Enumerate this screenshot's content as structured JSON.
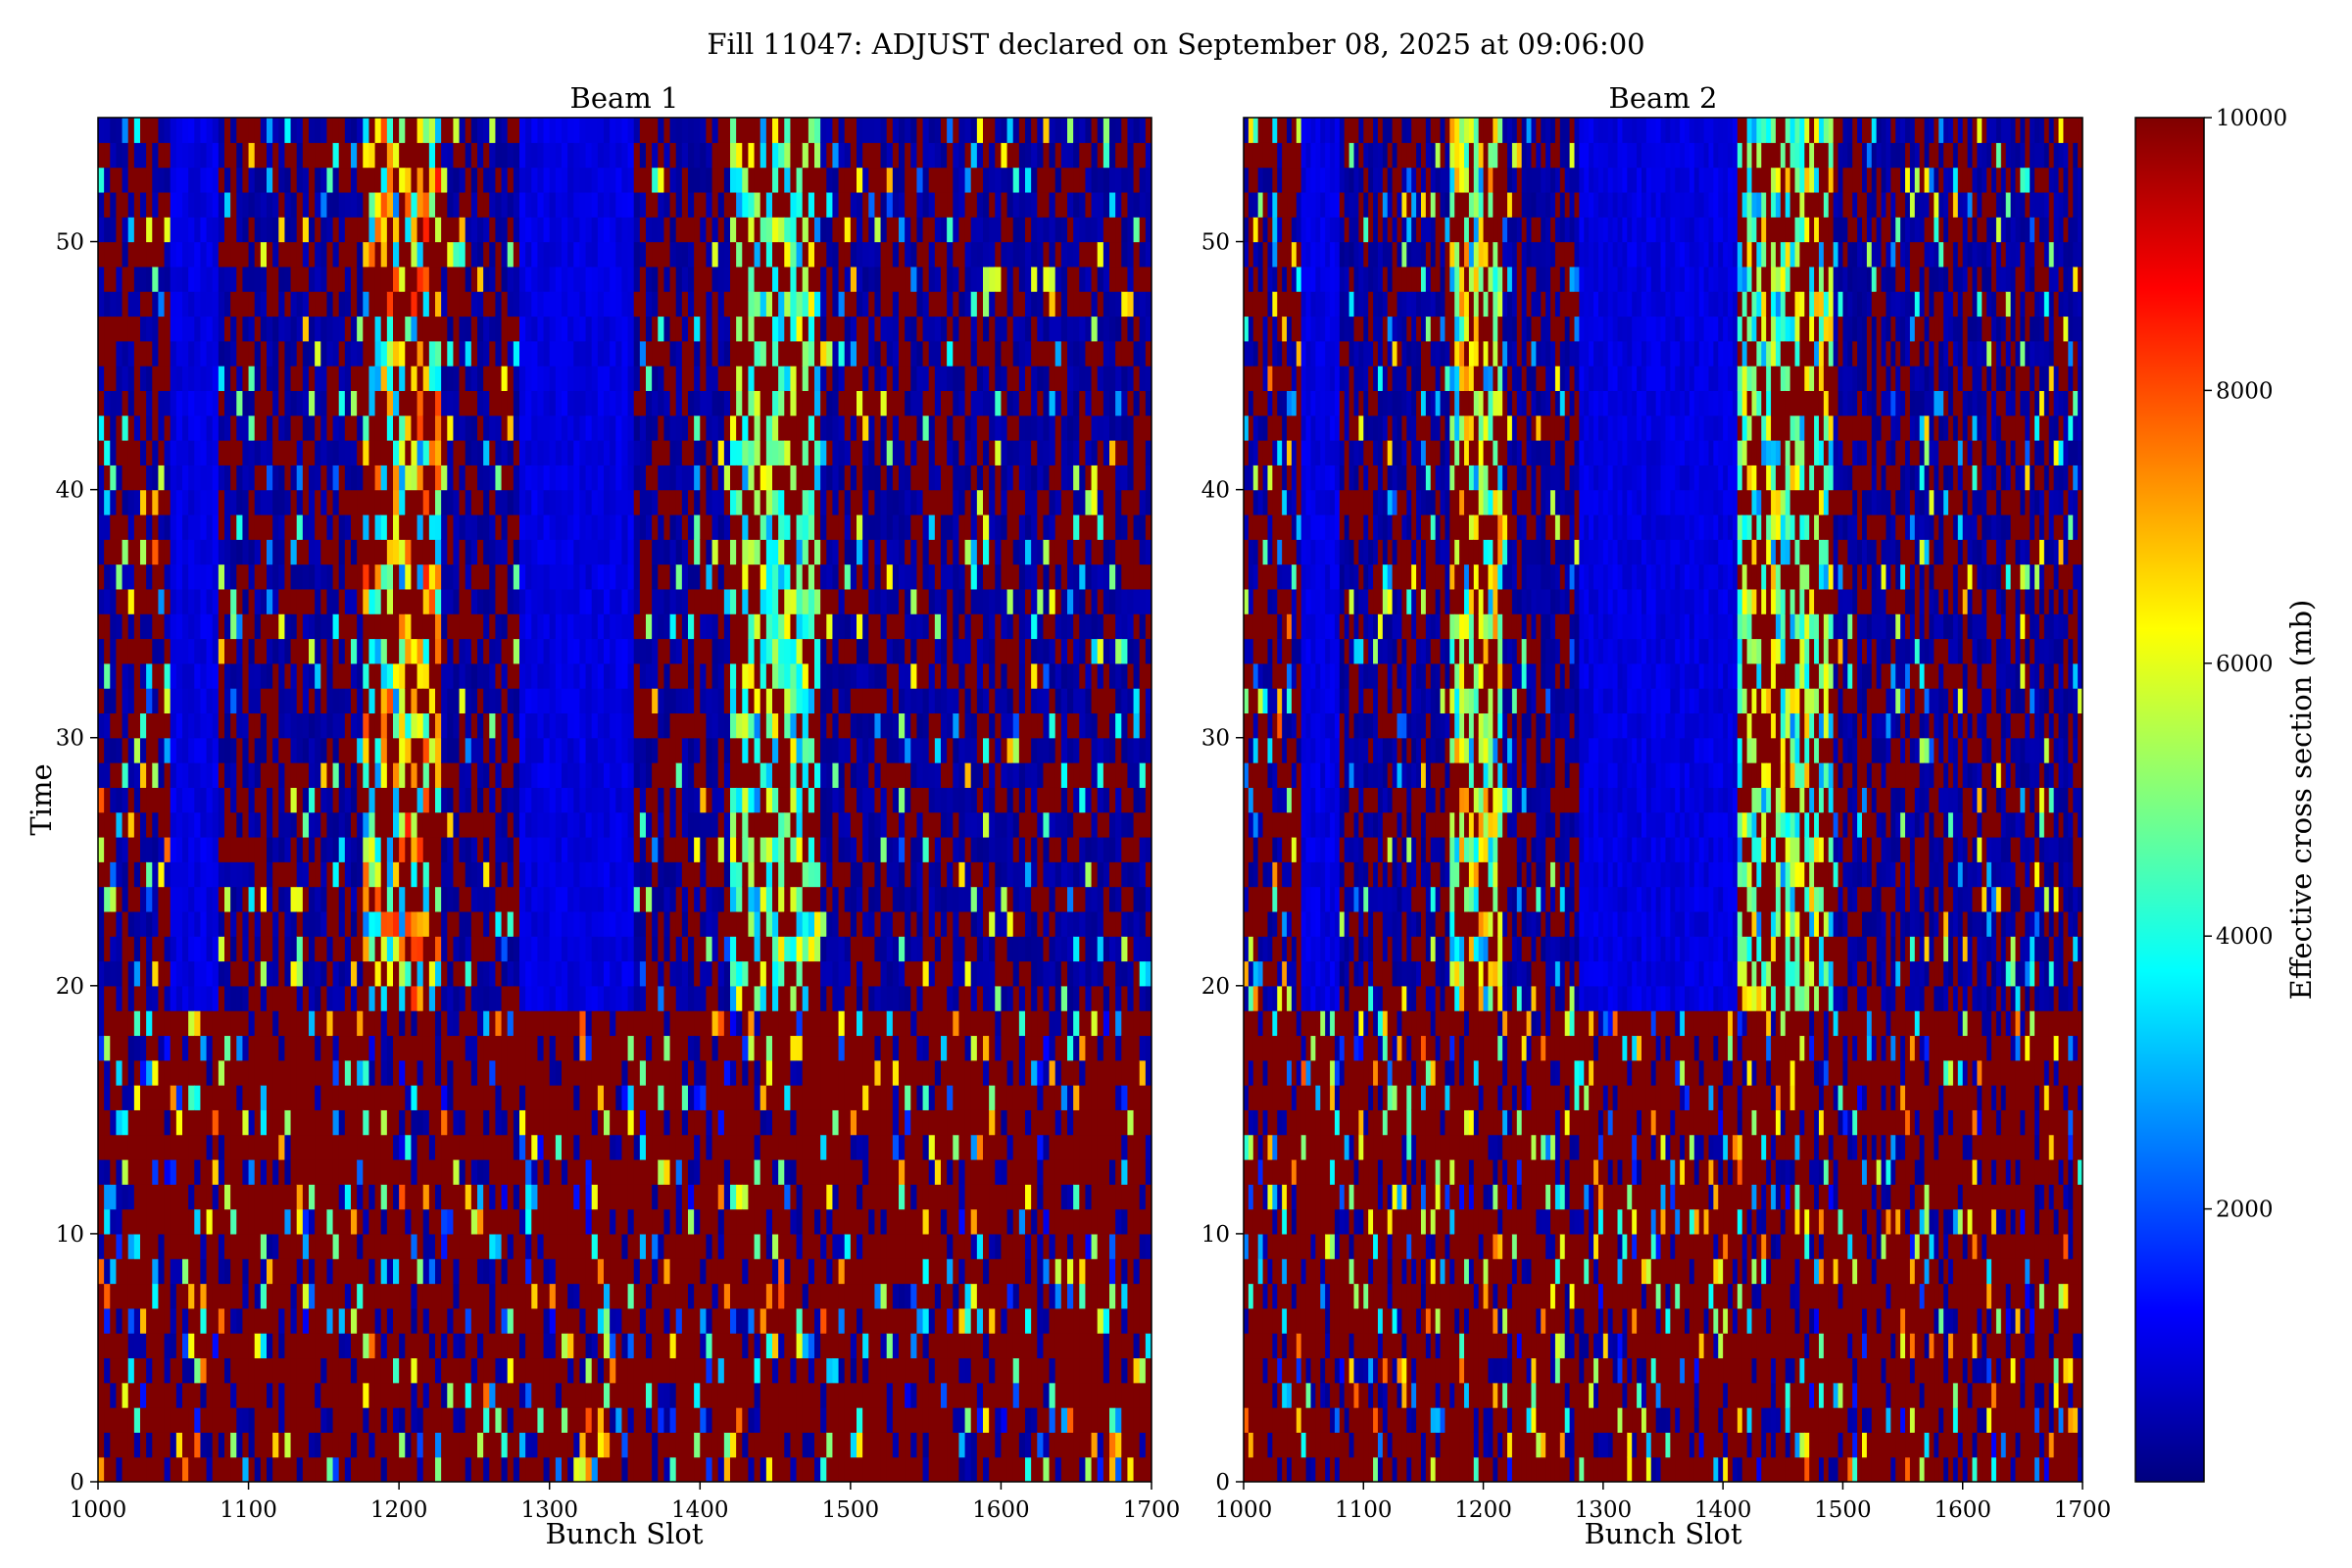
{
  "figure": {
    "suptitle": "Fill 11047: ADJUST declared on September 08, 2025 at 09:06:00"
  },
  "chart_data": [
    {
      "type": "heatmap",
      "title": "Beam 1",
      "xlabel": "Bunch Slot",
      "ylabel": "Time",
      "xlim": [
        1000,
        1700
      ],
      "ylim": [
        0,
        55
      ],
      "xticks": [
        1000,
        1100,
        1200,
        1300,
        1400,
        1500,
        1600,
        1700
      ],
      "yticks": [
        0,
        10,
        20,
        30,
        40,
        50
      ],
      "grid": false,
      "transition_time": 18.5,
      "empty_slot_ranges": [
        [
          1045,
          1080
        ],
        [
          1280,
          1355
        ]
      ],
      "low_sigma_ranges": [
        [
          1080,
          1180
        ],
        [
          1220,
          1280
        ],
        [
          1355,
          1425
        ],
        [
          1480,
          1700
        ]
      ],
      "high_sigma_bands": [
        {
          "slot_range": [
            1175,
            1225
          ],
          "peak": 7000
        },
        {
          "slot_range": [
            1420,
            1480
          ],
          "peak": 5000
        }
      ]
    },
    {
      "type": "heatmap",
      "title": "Beam 2",
      "xlabel": "Bunch Slot",
      "ylabel": "",
      "xlim": [
        1000,
        1700
      ],
      "ylim": [
        0,
        55
      ],
      "xticks": [
        1000,
        1100,
        1200,
        1300,
        1400,
        1500,
        1600,
        1700
      ],
      "yticks": [
        0,
        10,
        20,
        30,
        40,
        50
      ],
      "grid": false,
      "transition_time": 18.5,
      "empty_slot_ranges": [
        [
          1045,
          1080
        ],
        [
          1280,
          1410
        ]
      ],
      "low_sigma_ranges": [
        [
          1080,
          1180
        ],
        [
          1220,
          1280
        ],
        [
          1490,
          1700
        ]
      ],
      "high_sigma_bands": [
        {
          "slot_range": [
            1170,
            1215
          ],
          "peak": 6000
        },
        {
          "slot_range": [
            1410,
            1490
          ],
          "peak": 5500
        }
      ]
    }
  ],
  "colorbar": {
    "label": "Effective cross section (mb)",
    "colormap": "jet",
    "range": [
      0,
      10000
    ],
    "ticks": [
      2000,
      4000,
      6000,
      8000,
      10000
    ],
    "colors": [
      "#00007f",
      "#0000ff",
      "#007fff",
      "#00ffff",
      "#7fff7f",
      "#ffff00",
      "#ff7f00",
      "#ff0000",
      "#7f0000"
    ]
  }
}
